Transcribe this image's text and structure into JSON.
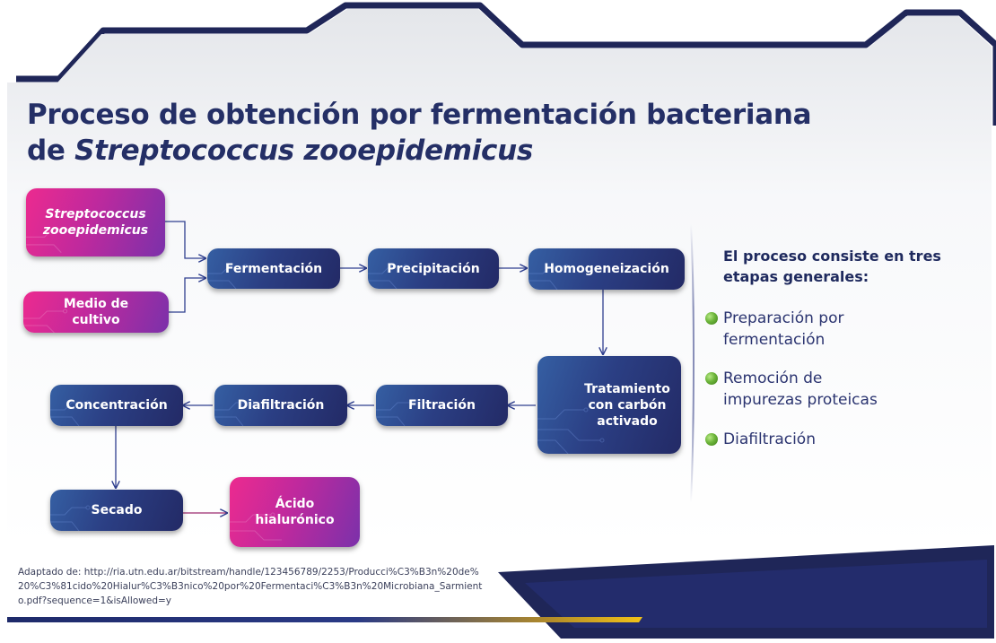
{
  "title": {
    "line1": "Proceso de obtención por fermentación bacteriana",
    "line2_prefix": "de ",
    "line2_italic": "Streptococcus zooepidemicus"
  },
  "nodes": {
    "streptococcus": "Streptococcus zooepidemicus",
    "medio_cultivo": "Medio de cultivo",
    "fermentacion": "Fermentación",
    "precipitacion": "Precipitación",
    "homogeneizacion": "Homogeneización",
    "tratamiento": "Tratamiento con carbón activado",
    "filtracion": "Filtración",
    "diafiltracion": "Diafiltración",
    "concentracion": "Concentración",
    "secado": "Secado",
    "acido": "Ácido hialurónico"
  },
  "sidebar": {
    "heading": "El proceso consiste en tres etapas generales:",
    "bullets": [
      "Preparación por fermentación",
      "Remoción de impurezas proteicas",
      "Diafiltración"
    ]
  },
  "source": "Adaptado de: http://ria.utn.edu.ar/bitstream/handle/123456789/2253/Producci%C3%B3n%20de%20%C3%81cido%20Hialur%C3%B3nico%20por%20Fermentaci%C3%B3n%20Microbiana_Sarmiento.pdf?sequence=1&isAllowed=y",
  "colors": {
    "title": "#242f66",
    "node_blue": "#2b3f84",
    "node_pink": "#ec2a8f",
    "arrow": "#2f3f8f",
    "bullet_green": "#6cb43a",
    "accent_gold": "#f2c318"
  }
}
